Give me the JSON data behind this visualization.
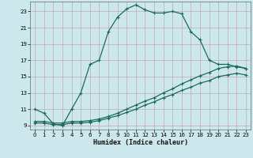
{
  "xlabel": "Humidex (Indice chaleur)",
  "bg_color": "#cde8ec",
  "grid_color": "#b8d8dc",
  "line_color": "#1a6b5a",
  "xlim": [
    -0.5,
    23.5
  ],
  "ylim": [
    8.5,
    24.2
  ],
  "yticks": [
    9,
    11,
    13,
    15,
    17,
    19,
    21,
    23
  ],
  "xticks": [
    0,
    1,
    2,
    3,
    4,
    5,
    6,
    7,
    8,
    9,
    10,
    11,
    12,
    13,
    14,
    15,
    16,
    17,
    18,
    19,
    20,
    21,
    22,
    23
  ],
  "series1_x": [
    0,
    1,
    2,
    3,
    4,
    5,
    6,
    7,
    8,
    9,
    10,
    11,
    12,
    13,
    14,
    15,
    16,
    17,
    18,
    19,
    20,
    21,
    22,
    23
  ],
  "series1_y": [
    11.0,
    10.5,
    9.2,
    9.0,
    11.0,
    13.0,
    16.5,
    17.0,
    20.5,
    22.3,
    23.3,
    23.8,
    23.2,
    22.8,
    22.8,
    23.0,
    22.7,
    20.5,
    19.5,
    17.0,
    16.5,
    16.5,
    16.2,
    16.0
  ],
  "series2_x": [
    0,
    1,
    2,
    3,
    4,
    5,
    6,
    7,
    8,
    9,
    10,
    11,
    12,
    13,
    14,
    15,
    16,
    17,
    18,
    19,
    20,
    21,
    22,
    23
  ],
  "series2_y": [
    9.5,
    9.5,
    9.3,
    9.3,
    9.5,
    9.5,
    9.6,
    9.8,
    10.1,
    10.5,
    11.0,
    11.5,
    12.0,
    12.4,
    13.0,
    13.5,
    14.1,
    14.6,
    15.1,
    15.5,
    16.0,
    16.2,
    16.3,
    16.0
  ],
  "series3_x": [
    0,
    1,
    2,
    3,
    4,
    5,
    6,
    7,
    8,
    9,
    10,
    11,
    12,
    13,
    14,
    15,
    16,
    17,
    18,
    19,
    20,
    21,
    22,
    23
  ],
  "series3_y": [
    9.3,
    9.3,
    9.1,
    9.1,
    9.3,
    9.3,
    9.4,
    9.6,
    9.9,
    10.2,
    10.6,
    11.0,
    11.5,
    11.9,
    12.4,
    12.8,
    13.3,
    13.7,
    14.2,
    14.5,
    15.0,
    15.2,
    15.4,
    15.2
  ]
}
